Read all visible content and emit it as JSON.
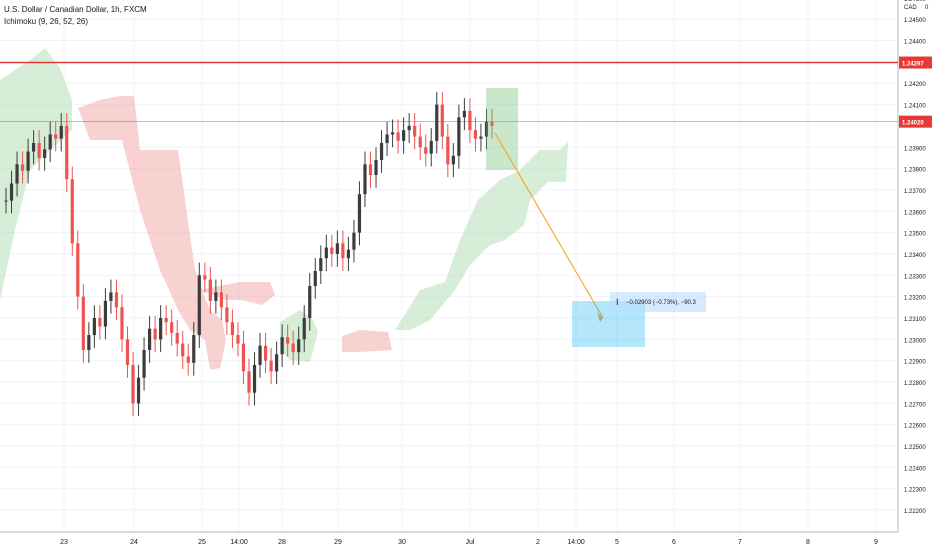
{
  "header": {
    "symbol_title": "U.S. Dollar / Canadian Dollar, 1h, FXCM",
    "indicator_label": "Ichimoku (9, 26, 52, 26)"
  },
  "axis": {
    "currency_label": "CAD",
    "currency_value": "0"
  },
  "colors": {
    "up": "#3c3c3c",
    "down": "#ef5350",
    "hline": "#e53935",
    "cloud_bull": "#a5d6a7",
    "cloud_bear": "#ef9a9a",
    "projection": "#29b6f6",
    "arrow": "#f5a623"
  },
  "chart_data": {
    "type": "candlestick",
    "title": "U.S. Dollar / Canadian Dollar, 1h, FXCM",
    "y_range": [
      1.2213,
      1.2459
    ],
    "y_ticks": [
      "1.24600",
      "1.24500",
      "1.24400",
      "1.24200",
      "1.24100",
      "1.23900",
      "1.23800",
      "1.23700",
      "1.23600",
      "1.23500",
      "1.23400",
      "1.23300",
      "1.23200",
      "1.23100",
      "1.23000",
      "1.22900",
      "1.22800",
      "1.22700",
      "1.22600",
      "1.22500",
      "1.22400",
      "1.22300",
      "1.22200"
    ],
    "x_ticks": [
      "23",
      "24",
      "25",
      "14:00",
      "28",
      "29",
      "30",
      "Jul",
      "2",
      "14:00",
      "5",
      "6",
      "7",
      "8",
      "9"
    ],
    "horizontal_lines": [
      {
        "price": 1.24297,
        "label": "1.24297"
      },
      {
        "price": 1.2402,
        "label": "1.24020"
      }
    ],
    "annotations": [
      {
        "text": "−0.02903 (−0.73%), −90.3"
      }
    ],
    "price_path": [
      1.2365,
      1.2373,
      1.2382,
      1.2379,
      1.2388,
      1.2392,
      1.2385,
      1.2389,
      1.2396,
      1.2394,
      1.24,
      1.2375,
      1.2345,
      1.232,
      1.2295,
      1.2302,
      1.231,
      1.2306,
      1.2318,
      1.2322,
      1.2315,
      1.23,
      1.2288,
      1.227,
      1.2282,
      1.2295,
      1.2305,
      1.23,
      1.231,
      1.2308,
      1.2303,
      1.2298,
      1.2292,
      1.2289,
      1.2302,
      1.233,
      1.2328,
      1.2318,
      1.2322,
      1.2315,
      1.2308,
      1.2302,
      1.2298,
      1.2285,
      1.2275,
      1.2288,
      1.2297,
      1.229,
      1.2285,
      1.2293,
      1.2301,
      1.2298,
      1.2294,
      1.23,
      1.231,
      1.2325,
      1.2332,
      1.2338,
      1.2343,
      1.234,
      1.2345,
      1.2338,
      1.2342,
      1.235,
      1.2368,
      1.2382,
      1.2377,
      1.2384,
      1.2392,
      1.2396,
      1.2397,
      1.2393,
      1.2398,
      1.24,
      1.2395,
      1.239,
      1.2387,
      1.2393,
      1.241,
      1.2395,
      1.2382,
      1.2386,
      1.2404,
      1.2407,
      1.2398,
      1.2394,
      1.2395,
      1.2402,
      1.24
    ],
    "price_path_note_removed": true
  }
}
